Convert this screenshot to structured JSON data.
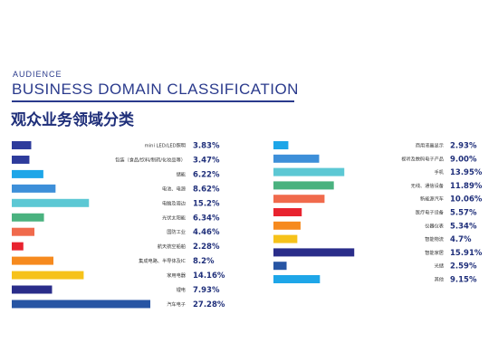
{
  "header": {
    "kicker": "AUDIENCE",
    "title": "BUSINESS DOMAIN CLASSIFICATION",
    "title_cn": "观众业务领域分类"
  },
  "chart_data": [
    {
      "type": "bar",
      "orientation": "horizontal",
      "categories": [
        "mini LED/LED照明",
        "包装（食品/饮料/制药/化妆品等）",
        "储能",
        "电池、电源",
        "电脑及周边",
        "光伏太阳能",
        "国防工业",
        "航天航空船舶",
        "集成电路、半导体及IC",
        "家用电器",
        "锂电",
        "汽车电子"
      ],
      "values": [
        3.83,
        3.47,
        6.22,
        8.62,
        15.2,
        6.34,
        4.46,
        2.28,
        8.2,
        14.16,
        7.93,
        27.28
      ],
      "value_labels": [
        "3.83%",
        "3.47%",
        "6.22%",
        "8.62%",
        "15.2%",
        "6.34%",
        "4.46%",
        "2.28%",
        "8.2%",
        "14.16%",
        "7.93%",
        "27.28%"
      ],
      "colors": [
        "#2d3b9c",
        "#2d3b9c",
        "#1ea6e8",
        "#3d8fd9",
        "#5cc8d4",
        "#4ab27f",
        "#f06a4c",
        "#e8232f",
        "#f68a1e",
        "#f6c21a",
        "#2a2d8a",
        "#2755a4"
      ],
      "xlim": [
        0,
        27.28
      ]
    },
    {
      "type": "bar",
      "orientation": "horizontal",
      "categories": [
        "商用液晶显示",
        "视听及数码电子产品",
        "手机",
        "无线、通信设备",
        "新能源汽车",
        "医疗电子设备",
        "仪器仪表",
        "智能物流",
        "智能家居",
        "光储",
        "其他"
      ],
      "values": [
        2.93,
        9.0,
        13.95,
        11.89,
        10.06,
        5.57,
        5.34,
        4.7,
        15.91,
        2.59,
        9.15
      ],
      "value_labels": [
        "2.93%",
        "9.00%",
        "13.95%",
        "11.89%",
        "10.06%",
        "5.57%",
        "5.34%",
        "4.7%",
        "15.91%",
        "2.59%",
        "9.15%"
      ],
      "colors": [
        "#1ea6e8",
        "#3d8fd9",
        "#5cc8d4",
        "#4ab27f",
        "#f06a4c",
        "#e8232f",
        "#f68a1e",
        "#f6c21a",
        "#2a2d8a",
        "#2755a4",
        "#1ea6e8"
      ],
      "xlim": [
        0,
        27.28
      ]
    }
  ]
}
